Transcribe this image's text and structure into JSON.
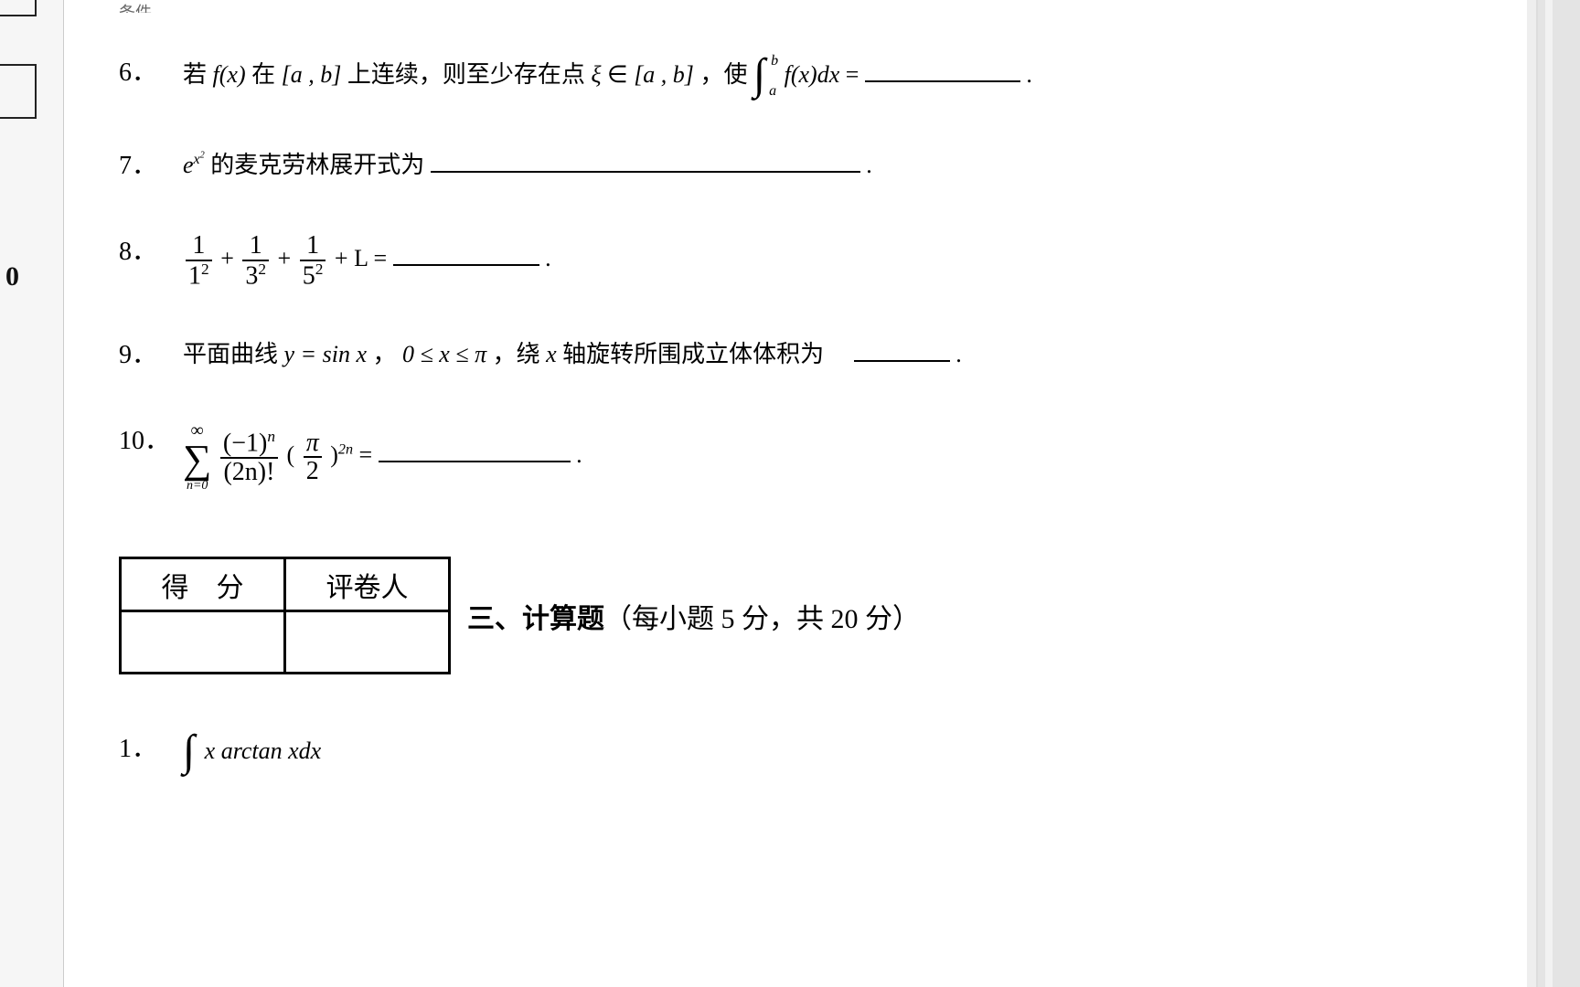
{
  "edge": {
    "zero": "0"
  },
  "top_fragment": "条件.",
  "q6": {
    "num": "6．",
    "t1": "若 ",
    "fx": "f(x)",
    "t2": " 在",
    "ab1": "[a , b]",
    "t3": "上连续，则至少存在点",
    "xi": "ξ",
    "in": "∈",
    "ab2": "[a , b]",
    "t4": "，使",
    "int_a": "a",
    "int_b": "b",
    "intexpr": "f(x)dx",
    "eq": "=",
    "period": "."
  },
  "q7": {
    "num": "7．",
    "e": "e",
    "exp_sup_base": "x",
    "exp_sup_pow": "2",
    "t1": " 的麦克劳林展开式为",
    "period": "."
  },
  "q8": {
    "num": "8．",
    "t1_top": "1",
    "t1_bot_base": "1",
    "t1_bot_exp": "2",
    "plus": "+",
    "t2_top": "1",
    "t2_bot_base": "3",
    "t2_bot_exp": "2",
    "t3_top": "1",
    "t3_bot_base": "5",
    "t3_bot_exp": "2",
    "ell": "L",
    "eqs": "  =",
    "period": "."
  },
  "q9": {
    "num": "9．",
    "t1": "平面曲线 ",
    "eq1": "y = sin x",
    "t2": " ， ",
    "rng": "0 ≤ x ≤ π",
    "t3": " ，绕 ",
    "x": "x",
    "t4": " 轴旋转所围成立体体积为",
    "period": "."
  },
  "q10": {
    "num": "10．",
    "sum_ub": "∞",
    "sum_lb": "n=0",
    "f1_top": "(−1)",
    "f1_top_exp": "n",
    "f1_bot": "(2n)!",
    "lpar": "(",
    "f2_top": "π",
    "f2_bot": "2",
    "rpar": ")",
    "outer_exp": "2n",
    "eq": " =",
    "period": "."
  },
  "score_table": {
    "h1": "得　分",
    "h2": "评卷人",
    "col1_w": 180,
    "col2_w": 180
  },
  "section3": {
    "label": "三、计算题",
    "note": "（每小题 5 分，共 20 分）"
  },
  "c1": {
    "num": "1．",
    "expr": "x arctan xdx"
  },
  "blanks": {
    "q6_w": 170,
    "q7_w": 470,
    "q8_w": 160,
    "q9_w": 105,
    "q10_w": 210
  },
  "colors": {
    "page_bg": "#ffffff",
    "outer_bg": "#eeeeee",
    "text": "#111111",
    "border": "#000000"
  }
}
